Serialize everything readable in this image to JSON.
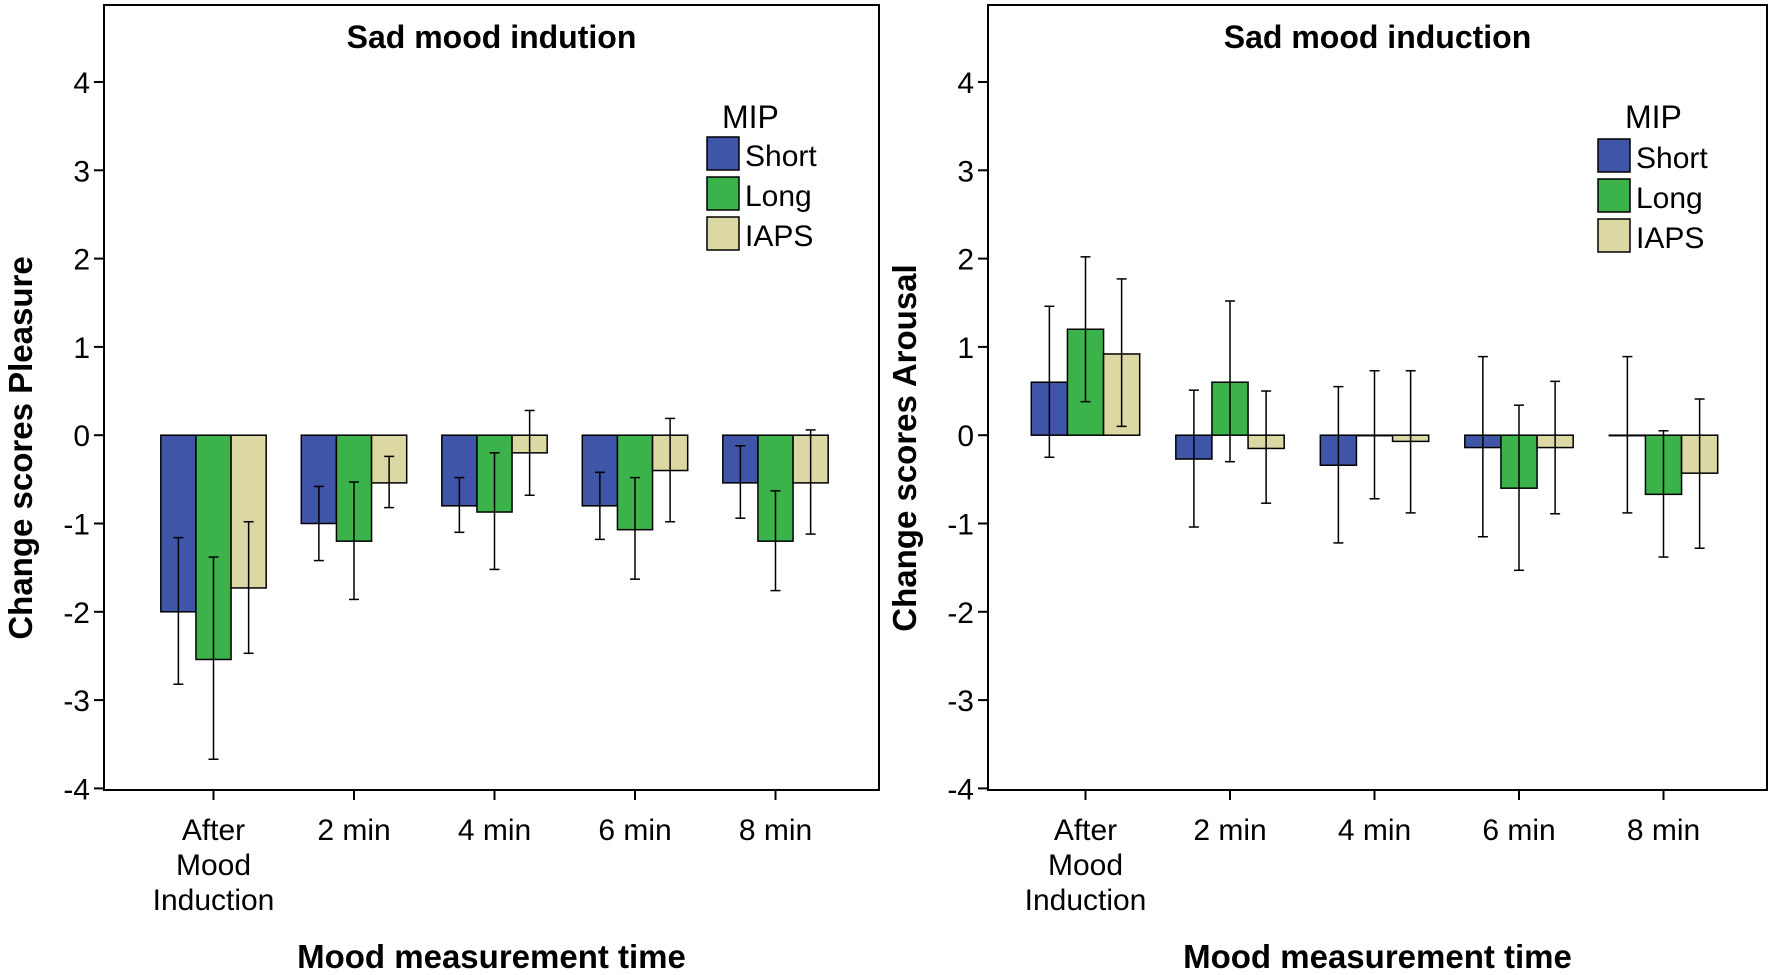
{
  "chart_data": [
    {
      "type": "bar",
      "title": "Sad mood indution",
      "xlabel": "Mood measurement time",
      "ylabel": "Change scores Pleasure",
      "ylim": [
        -4,
        4
      ],
      "yticks": [
        4,
        3,
        2,
        1,
        0,
        -1,
        -2,
        -3,
        -4
      ],
      "categories": [
        [
          "After",
          "Mood",
          "Induction"
        ],
        [
          "2 min"
        ],
        [
          "4 min"
        ],
        [
          "6 min"
        ],
        [
          "8 min"
        ]
      ],
      "legend": {
        "title": "MIP",
        "position": "top-right"
      },
      "series": [
        {
          "name": "Short",
          "color": "#3f55a8",
          "values": [
            -2.0,
            -1.0,
            -0.8,
            -0.8,
            -0.54
          ],
          "err_low": [
            -2.82,
            -1.42,
            -1.1,
            -1.18,
            -0.94
          ],
          "err_high": [
            -1.16,
            -0.58,
            -0.48,
            -0.42,
            -0.12
          ]
        },
        {
          "name": "Long",
          "color": "#3cb34a",
          "values": [
            -2.54,
            -1.2,
            -0.87,
            -1.07,
            -1.2
          ],
          "err_low": [
            -3.67,
            -1.86,
            -1.52,
            -1.63,
            -1.76
          ],
          "err_high": [
            -1.38,
            -0.53,
            -0.2,
            -0.48,
            -0.63
          ]
        },
        {
          "name": "IAPS",
          "color": "#dbd8a4",
          "values": [
            -1.73,
            -0.54,
            -0.2,
            -0.4,
            -0.54
          ],
          "err_low": [
            -2.47,
            -0.82,
            -0.68,
            -0.98,
            -1.12
          ],
          "err_high": [
            -0.98,
            -0.24,
            0.28,
            0.19,
            0.06
          ]
        }
      ]
    },
    {
      "type": "bar",
      "title": "Sad mood induction",
      "xlabel": "Mood measurement time",
      "ylabel": "Change scores Arousal",
      "ylim": [
        -4,
        4
      ],
      "yticks": [
        4,
        3,
        2,
        1,
        0,
        -1,
        -2,
        -3,
        -4
      ],
      "categories": [
        [
          "After",
          "Mood",
          "Induction"
        ],
        [
          "2 min"
        ],
        [
          "4 min"
        ],
        [
          "6 min"
        ],
        [
          "8 min"
        ]
      ],
      "legend": {
        "title": "MIP",
        "position": "top-right"
      },
      "series": [
        {
          "name": "Short",
          "color": "#3f55a8",
          "values": [
            0.6,
            -0.27,
            -0.34,
            -0.14,
            0.0
          ],
          "err_low": [
            -0.25,
            -1.04,
            -1.22,
            -1.15,
            -0.88
          ],
          "err_high": [
            1.46,
            0.51,
            0.55,
            0.89,
            0.89
          ]
        },
        {
          "name": "Long",
          "color": "#3cb34a",
          "values": [
            1.2,
            0.6,
            0.0,
            -0.6,
            -0.67
          ],
          "err_low": [
            0.38,
            -0.3,
            -0.72,
            -1.53,
            -1.38
          ],
          "err_high": [
            2.02,
            1.52,
            0.73,
            0.34,
            0.05
          ]
        },
        {
          "name": "IAPS",
          "color": "#dbd8a4",
          "values": [
            0.92,
            -0.15,
            -0.07,
            -0.14,
            -0.43
          ],
          "err_low": [
            0.1,
            -0.77,
            -0.88,
            -0.89,
            -1.28
          ],
          "err_high": [
            1.77,
            0.5,
            0.73,
            0.61,
            0.41
          ]
        }
      ]
    }
  ]
}
